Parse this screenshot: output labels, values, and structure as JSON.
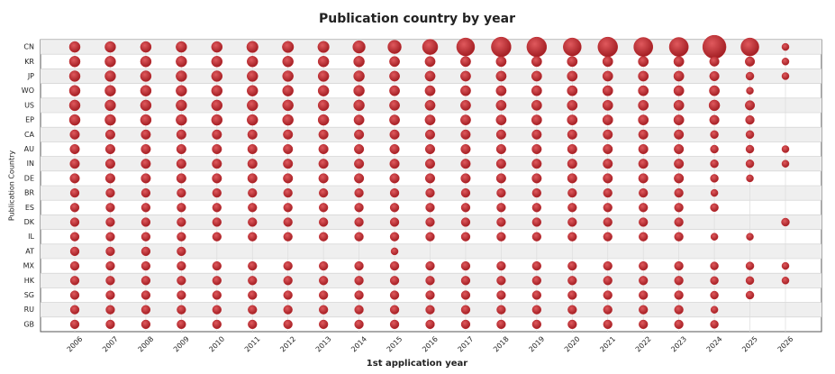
{
  "chart_data": {
    "type": "bubble-grid",
    "title": "Publication country by year",
    "x_label": "1st application year",
    "y_label": "Publication Country",
    "color": "#c0282d",
    "categories": [
      "2006",
      "2007",
      "2008",
      "2009",
      "2010",
      "2011",
      "2012",
      "2013",
      "2014",
      "2015",
      "2016",
      "2017",
      "2018",
      "2019",
      "2020",
      "2021",
      "2022",
      "2023",
      "2024",
      "2025",
      "2026"
    ],
    "series": [
      {
        "name": "CN",
        "values": [
          9,
          9,
          9,
          9,
          9,
          10,
          10,
          10,
          12,
          14,
          18,
          25,
          30,
          30,
          25,
          30,
          28,
          28,
          42,
          25,
          4
        ]
      },
      {
        "name": "KR",
        "values": [
          9,
          9,
          9,
          9,
          9,
          9,
          9,
          9,
          9,
          8,
          8,
          8,
          8,
          8,
          8,
          8,
          8,
          8,
          7,
          7,
          4
        ]
      },
      {
        "name": "JP",
        "values": [
          9,
          9,
          9,
          9,
          9,
          9,
          9,
          9,
          9,
          8,
          8,
          8,
          8,
          8,
          8,
          8,
          8,
          8,
          7,
          5,
          4
        ]
      },
      {
        "name": "WO",
        "values": [
          9,
          9,
          9,
          9,
          9,
          9,
          9,
          9,
          9,
          8,
          8,
          8,
          8,
          8,
          8,
          8,
          8,
          8,
          8,
          4,
          null
        ]
      },
      {
        "name": "US",
        "values": [
          9,
          9,
          9,
          9,
          9,
          9,
          9,
          9,
          9,
          8,
          8,
          8,
          8,
          8,
          8,
          8,
          8,
          8,
          9,
          7,
          null
        ]
      },
      {
        "name": "EP",
        "values": [
          9,
          9,
          9,
          9,
          9,
          9,
          9,
          9,
          8,
          8,
          8,
          8,
          8,
          8,
          8,
          8,
          8,
          8,
          7,
          6,
          null
        ]
      },
      {
        "name": "CA",
        "values": [
          7,
          7,
          7,
          7,
          7,
          7,
          7,
          7,
          7,
          7,
          7,
          7,
          7,
          7,
          7,
          7,
          7,
          7,
          5,
          5,
          null
        ]
      },
      {
        "name": "AU",
        "values": [
          7,
          7,
          7,
          7,
          7,
          7,
          7,
          7,
          7,
          7,
          7,
          7,
          7,
          7,
          7,
          7,
          7,
          7,
          5,
          5,
          4
        ]
      },
      {
        "name": "IN",
        "values": [
          7,
          7,
          7,
          7,
          7,
          7,
          7,
          7,
          7,
          7,
          7,
          7,
          7,
          7,
          7,
          7,
          7,
          7,
          5,
          5,
          4
        ]
      },
      {
        "name": "DE",
        "values": [
          7,
          7,
          7,
          7,
          7,
          7,
          7,
          7,
          7,
          7,
          7,
          7,
          7,
          7,
          7,
          7,
          7,
          7,
          5,
          4,
          null
        ]
      },
      {
        "name": "BR",
        "values": [
          6,
          6,
          6,
          6,
          6,
          6,
          6,
          6,
          6,
          6,
          6,
          6,
          6,
          6,
          6,
          6,
          6,
          6,
          4,
          null,
          null
        ]
      },
      {
        "name": "ES",
        "values": [
          6,
          6,
          6,
          6,
          6,
          6,
          6,
          6,
          6,
          6,
          6,
          6,
          6,
          6,
          6,
          6,
          6,
          6,
          5,
          null,
          null
        ]
      },
      {
        "name": "DK",
        "values": [
          6,
          6,
          6,
          6,
          6,
          6,
          6,
          6,
          6,
          6,
          6,
          6,
          6,
          6,
          6,
          6,
          6,
          6,
          null,
          null,
          5
        ]
      },
      {
        "name": "IL",
        "values": [
          6,
          6,
          6,
          6,
          6,
          6,
          6,
          6,
          6,
          6,
          6,
          6,
          6,
          6,
          6,
          6,
          6,
          6,
          4,
          4,
          null
        ]
      },
      {
        "name": "AT",
        "values": [
          6,
          6,
          6,
          6,
          null,
          null,
          null,
          null,
          null,
          4,
          null,
          null,
          null,
          null,
          null,
          null,
          null,
          null,
          null,
          null,
          null
        ]
      },
      {
        "name": "MX",
        "values": [
          6,
          6,
          6,
          6,
          6,
          6,
          6,
          6,
          6,
          6,
          6,
          6,
          6,
          6,
          6,
          6,
          6,
          6,
          5,
          5,
          4
        ]
      },
      {
        "name": "HK",
        "values": [
          6,
          6,
          6,
          6,
          6,
          6,
          6,
          6,
          6,
          6,
          6,
          6,
          6,
          6,
          6,
          6,
          6,
          6,
          5,
          5,
          4
        ]
      },
      {
        "name": "SG",
        "values": [
          6,
          6,
          6,
          6,
          6,
          6,
          6,
          6,
          6,
          6,
          6,
          6,
          6,
          6,
          6,
          6,
          6,
          6,
          5,
          5,
          null
        ]
      },
      {
        "name": "RU",
        "values": [
          6,
          6,
          6,
          6,
          6,
          6,
          6,
          6,
          6,
          6,
          6,
          6,
          6,
          6,
          6,
          6,
          6,
          6,
          4,
          null,
          null
        ]
      },
      {
        "name": "GB",
        "values": [
          6,
          6,
          6,
          6,
          6,
          6,
          6,
          6,
          6,
          6,
          6,
          6,
          6,
          6,
          6,
          6,
          6,
          6,
          5,
          null,
          null
        ]
      }
    ]
  }
}
